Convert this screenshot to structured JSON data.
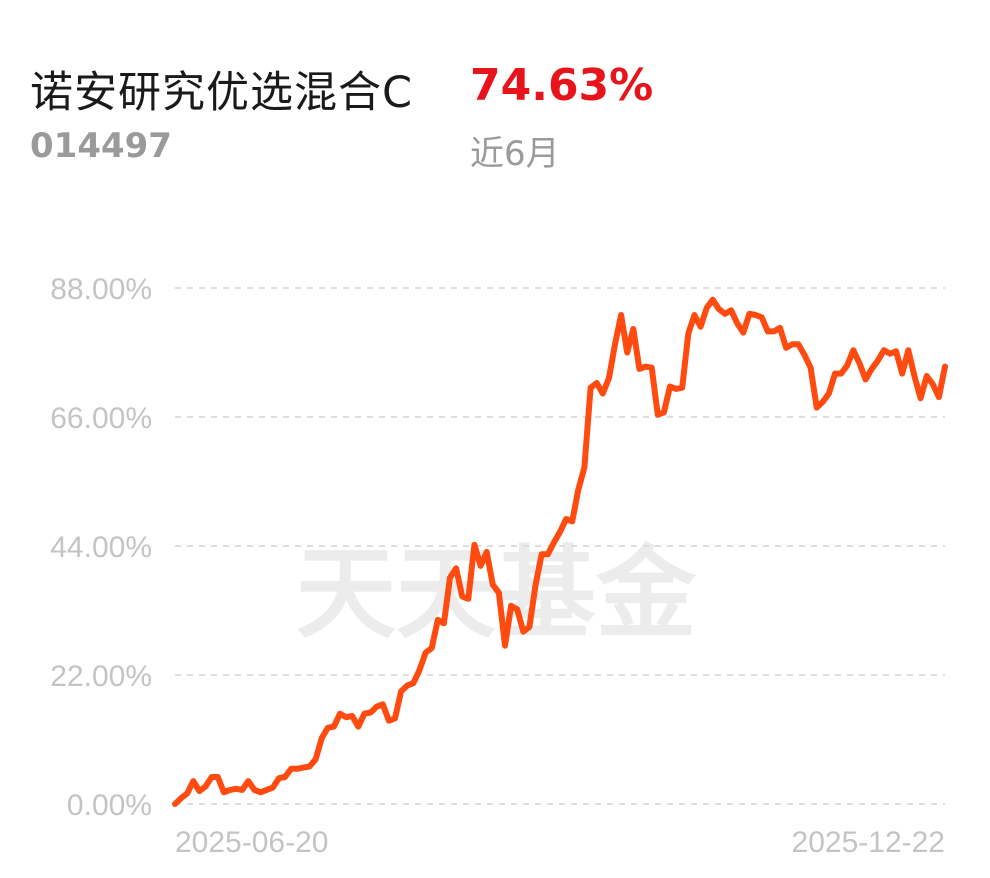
{
  "header": {
    "fund_name": "诺安研究优选混合C",
    "return_value": "74.63%",
    "fund_code": "014497",
    "period": "近6月"
  },
  "watermark": "天天基金",
  "colors": {
    "line": "#ff4a10",
    "return_red": "#e8141b",
    "grid": "#dedede",
    "tick_text": "#c4c4c4"
  },
  "chart_data": {
    "type": "line",
    "x_tick_labels": [
      "2025-06-20",
      "2025-12-22"
    ],
    "y_tick_labels": [
      "0.00%",
      "22.00%",
      "44.00%",
      "66.00%",
      "88.00%"
    ],
    "y_ticks": [
      0,
      22,
      44,
      66,
      88
    ],
    "ylim": [
      0,
      88
    ],
    "grid": true,
    "series": [
      {
        "values": [
          0.0,
          1.0,
          1.8,
          3.9,
          2.2,
          3.0,
          4.6,
          4.6,
          2.0,
          2.4,
          2.6,
          2.4,
          3.9,
          2.4,
          2.0,
          2.4,
          2.8,
          4.4,
          4.6,
          6.0,
          6.0,
          6.2,
          6.4,
          7.6,
          11.2,
          13.0,
          13.2,
          15.4,
          14.8,
          15.0,
          13.2,
          15.4,
          15.6,
          16.6,
          17.0,
          14.2,
          14.6,
          19.2,
          20.2,
          20.6,
          22.8,
          25.8,
          26.6,
          31.4,
          30.8,
          38.6,
          40.2,
          35.4,
          35.0,
          44.2,
          40.6,
          43.0,
          37.4,
          36.0,
          27.0,
          33.8,
          33.2,
          29.4,
          30.2,
          37.4,
          42.6,
          42.6,
          44.6,
          46.4,
          48.6,
          48.2,
          53.6,
          57.4,
          71.0,
          71.8,
          70.0,
          72.6,
          78.4,
          83.4,
          77.0,
          81.0,
          74.2,
          74.6,
          74.4,
          66.4,
          66.8,
          71.2,
          70.8,
          71.0,
          80.2,
          83.4,
          81.4,
          84.6,
          86.0,
          84.4,
          83.6,
          84.2,
          82.0,
          80.4,
          83.6,
          83.4,
          83.0,
          80.6,
          80.6,
          81.2,
          77.8,
          78.4,
          78.4,
          76.6,
          74.4,
          67.6,
          68.6,
          70.0,
          73.4,
          73.4,
          74.8,
          77.4,
          75.2,
          72.4,
          74.2,
          75.6,
          77.4,
          76.8,
          77.2,
          73.4,
          77.4,
          73.0,
          69.2,
          73.0,
          71.6,
          69.4,
          74.6
        ]
      }
    ]
  }
}
